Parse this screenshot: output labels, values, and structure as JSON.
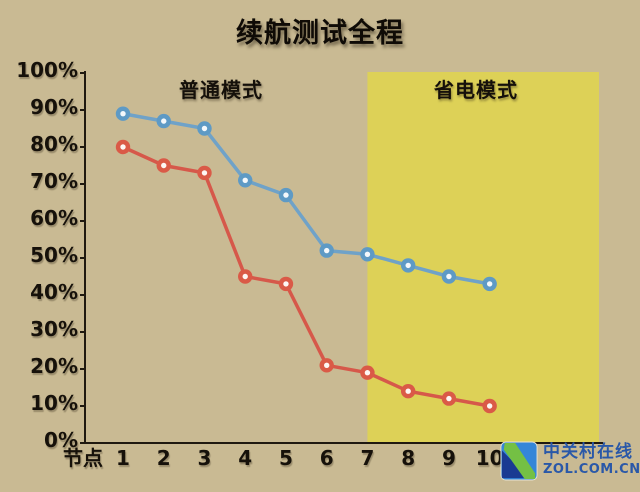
{
  "colors": {
    "background": "#c9ba93",
    "highlight": "#ddd157",
    "axis": "#1f1910",
    "text": "#16110a",
    "blue_line": "#6fa2c8",
    "red_line": "#d6584a",
    "watermark_blue": "#2a58a8",
    "logo_blue_light": "#3486d8",
    "logo_blue_dark": "#1a3a92",
    "logo_green": "#74c044"
  },
  "watermark": {
    "site_name": "中关村在线",
    "site_url": "ZOL.COM.CN"
  },
  "chart_data": {
    "type": "line",
    "title": "续航测试全程",
    "xlabel": "节点",
    "ylabel": "",
    "categories": [
      "1",
      "2",
      "3",
      "4",
      "5",
      "6",
      "7",
      "8",
      "9",
      "10"
    ],
    "y_ticks": [
      "0%",
      "10%",
      "20%",
      "30%",
      "40%",
      "50%",
      "60%",
      "70%",
      "80%",
      "90%",
      "100%"
    ],
    "ylim": [
      0,
      100
    ],
    "grid": false,
    "legend_position": "none",
    "series": [
      {
        "name": "blue-line",
        "color": "#6fa2c8",
        "marker_color": "#5e9ac5",
        "marker_center": "#f4f8fb",
        "values": [
          89,
          87,
          85,
          71,
          67,
          52,
          51,
          48,
          45,
          43
        ]
      },
      {
        "name": "red-line",
        "color": "#d6584a",
        "marker_color": "#da5a47",
        "marker_center": "#fdf6f4",
        "values": [
          80,
          75,
          73,
          45,
          43,
          21,
          19,
          14,
          12,
          10
        ]
      }
    ],
    "highlight_region": {
      "label": "省电模式",
      "x_start": 7,
      "x_end": 10,
      "color": "#ddd157"
    },
    "annotations": [
      {
        "text": "普通模式",
        "region": "nodes 1-7"
      },
      {
        "text": "省电模式",
        "region": "nodes 7-10"
      }
    ]
  }
}
